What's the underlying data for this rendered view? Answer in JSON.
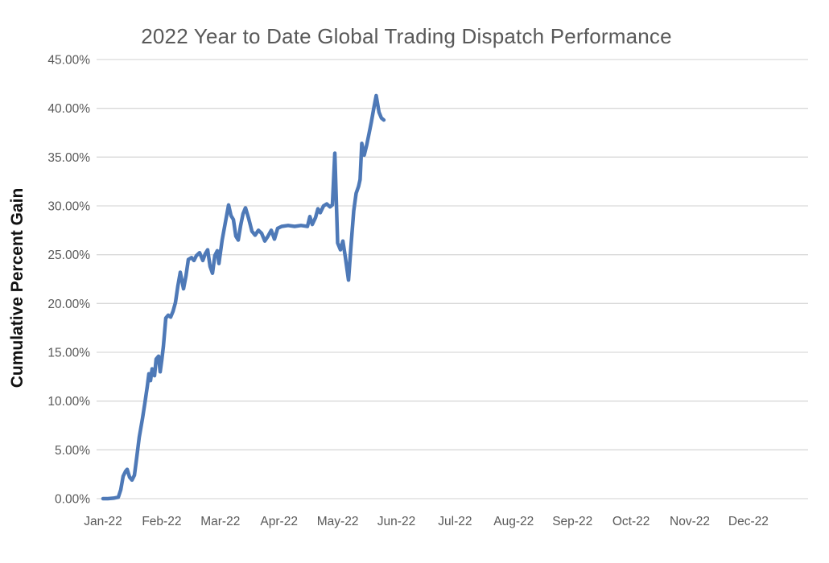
{
  "chart_data": {
    "type": "line",
    "title": "2022 Year to Date Global Trading Dispatch Performance",
    "xlabel": "",
    "ylabel": "Cumulative Percent Gain",
    "ylim": [
      0,
      45
    ],
    "grid": "horizontal",
    "legend": "none",
    "y_ticks": [
      [
        0,
        "0.00%"
      ],
      [
        5,
        "5.00%"
      ],
      [
        10,
        "10.00%"
      ],
      [
        15,
        "15.00%"
      ],
      [
        20,
        "20.00%"
      ],
      [
        25,
        "25.00%"
      ],
      [
        30,
        "30.00%"
      ],
      [
        35,
        "35.00%"
      ],
      [
        40,
        "40.00%"
      ],
      [
        45,
        "45.00%"
      ]
    ],
    "x_ticks": [
      [
        0,
        "Jan-22"
      ],
      [
        1,
        "Feb-22"
      ],
      [
        2,
        "Mar-22"
      ],
      [
        3,
        "Apr-22"
      ],
      [
        4,
        "May-22"
      ],
      [
        5,
        "Jun-22"
      ],
      [
        6,
        "Jul-22"
      ],
      [
        7,
        "Aug-22"
      ],
      [
        8,
        "Sep-22"
      ],
      [
        9,
        "Oct-22"
      ],
      [
        10,
        "Nov-22"
      ],
      [
        11,
        "Dec-22"
      ]
    ],
    "series": [
      {
        "name": "Cumulative Percent Gain",
        "color": "#4e79b7",
        "points": [
          [
            0.0,
            0.0
          ],
          [
            0.082,
            0.0
          ],
          [
            0.178,
            0.05
          ],
          [
            0.261,
            0.15
          ],
          [
            0.302,
            0.9
          ],
          [
            0.343,
            2.3
          ],
          [
            0.384,
            2.8
          ],
          [
            0.412,
            3.0
          ],
          [
            0.453,
            2.2
          ],
          [
            0.494,
            1.9
          ],
          [
            0.535,
            2.4
          ],
          [
            0.576,
            4.3
          ],
          [
            0.617,
            6.3
          ],
          [
            0.672,
            8.2
          ],
          [
            0.713,
            9.8
          ],
          [
            0.754,
            11.5
          ],
          [
            0.782,
            12.8
          ],
          [
            0.809,
            12.1
          ],
          [
            0.837,
            13.3
          ],
          [
            0.878,
            12.6
          ],
          [
            0.905,
            14.3
          ],
          [
            0.946,
            14.6
          ],
          [
            0.974,
            13.0
          ],
          [
            1.001,
            14.2
          ],
          [
            1.029,
            15.6
          ],
          [
            1.07,
            18.5
          ],
          [
            1.111,
            18.8
          ],
          [
            1.152,
            18.6
          ],
          [
            1.193,
            19.2
          ],
          [
            1.235,
            20.1
          ],
          [
            1.276,
            21.8
          ],
          [
            1.317,
            23.2
          ],
          [
            1.372,
            21.5
          ],
          [
            1.413,
            22.8
          ],
          [
            1.454,
            24.5
          ],
          [
            1.509,
            24.7
          ],
          [
            1.55,
            24.4
          ],
          [
            1.591,
            24.9
          ],
          [
            1.646,
            25.2
          ],
          [
            1.701,
            24.4
          ],
          [
            1.742,
            25.1
          ],
          [
            1.783,
            25.5
          ],
          [
            1.824,
            23.8
          ],
          [
            1.865,
            23.1
          ],
          [
            1.906,
            24.9
          ],
          [
            1.948,
            25.4
          ],
          [
            1.975,
            24.1
          ],
          [
            2.03,
            26.5
          ],
          [
            2.085,
            28.3
          ],
          [
            2.14,
            30.1
          ],
          [
            2.181,
            29.0
          ],
          [
            2.222,
            28.6
          ],
          [
            2.263,
            26.9
          ],
          [
            2.304,
            26.5
          ],
          [
            2.346,
            28.0
          ],
          [
            2.387,
            29.2
          ],
          [
            2.428,
            29.8
          ],
          [
            2.483,
            28.7
          ],
          [
            2.538,
            27.4
          ],
          [
            2.593,
            27.0
          ],
          [
            2.648,
            27.5
          ],
          [
            2.702,
            27.2
          ],
          [
            2.757,
            26.4
          ],
          [
            2.812,
            26.9
          ],
          [
            2.867,
            27.5
          ],
          [
            2.922,
            26.6
          ],
          [
            2.977,
            27.7
          ],
          [
            3.045,
            27.9
          ],
          [
            3.155,
            28.0
          ],
          [
            3.265,
            27.9
          ],
          [
            3.374,
            28.0
          ],
          [
            3.484,
            27.9
          ],
          [
            3.525,
            28.9
          ],
          [
            3.566,
            28.1
          ],
          [
            3.621,
            28.8
          ],
          [
            3.662,
            29.7
          ],
          [
            3.703,
            29.3
          ],
          [
            3.758,
            30.0
          ],
          [
            3.813,
            30.2
          ],
          [
            3.868,
            29.9
          ],
          [
            3.909,
            30.1
          ],
          [
            3.95,
            35.4
          ],
          [
            3.998,
            26.2
          ],
          [
            4.046,
            25.5
          ],
          [
            4.088,
            26.4
          ],
          [
            4.129,
            24.8
          ],
          [
            4.184,
            22.4
          ],
          [
            4.225,
            25.8
          ],
          [
            4.273,
            29.5
          ],
          [
            4.314,
            31.3
          ],
          [
            4.355,
            32.0
          ],
          [
            4.382,
            32.7
          ],
          [
            4.41,
            36.4
          ],
          [
            4.451,
            35.2
          ],
          [
            4.492,
            36.2
          ],
          [
            4.533,
            37.4
          ],
          [
            4.574,
            38.6
          ],
          [
            4.615,
            40.0
          ],
          [
            4.656,
            41.3
          ],
          [
            4.704,
            39.6
          ],
          [
            4.745,
            39.0
          ],
          [
            4.786,
            38.8
          ]
        ]
      }
    ]
  },
  "style": {
    "title_color": "#595959",
    "tick_label_color": "#595959",
    "gridline_color": "#d9d9d9",
    "line_color": "#4e79b7",
    "background": "#ffffff"
  }
}
